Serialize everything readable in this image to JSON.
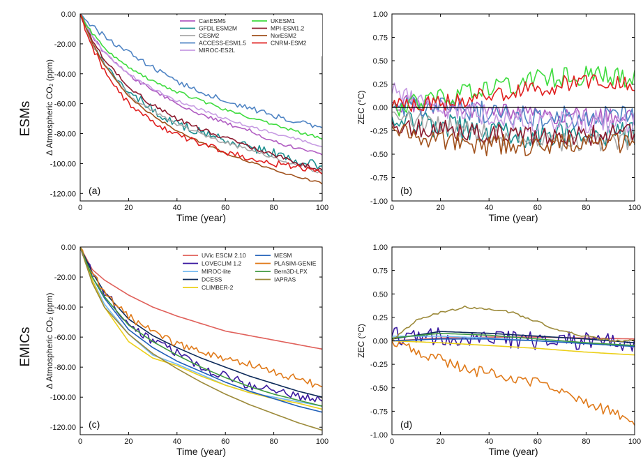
{
  "row_labels": [
    "ESMs",
    "EMICs"
  ],
  "chart_data": [
    {
      "panel": "(a)",
      "type": "line",
      "xlabel": "Time (year)",
      "ylabel": "Δ Atmospheric CO₂ (ppm)",
      "xlim": [
        0,
        100
      ],
      "ylim": [
        -125,
        0
      ],
      "xticks": [
        0,
        20,
        40,
        60,
        80,
        100
      ],
      "yticks": [
        -120,
        -100,
        -80,
        -60,
        -40,
        -20,
        0
      ],
      "legend_location": "upper right",
      "series": [
        {
          "name": "CanESM5",
          "color": "#b05cc2",
          "noise": 1.0,
          "x": [
            0,
            5,
            10,
            20,
            30,
            40,
            50,
            60,
            70,
            80,
            90,
            100
          ],
          "y": [
            0,
            -15,
            -26,
            -41,
            -51,
            -60,
            -67,
            -73,
            -78,
            -85,
            -90,
            -94
          ]
        },
        {
          "name": "GFDL ESM2M",
          "color": "#1d8f8f",
          "noise": 2.5,
          "x": [
            0,
            5,
            10,
            20,
            30,
            40,
            50,
            60,
            70,
            80,
            90,
            100
          ],
          "y": [
            0,
            -18,
            -32,
            -52,
            -64,
            -73,
            -79,
            -84,
            -89,
            -93,
            -98,
            -102
          ]
        },
        {
          "name": "CESM2",
          "color": "#a8a8a8",
          "noise": 1.0,
          "x": [
            0,
            5,
            10,
            20,
            30,
            40,
            50,
            60,
            70,
            80,
            90,
            100
          ],
          "y": [
            0,
            -20,
            -34,
            -54,
            -65,
            -74,
            -80,
            -86,
            -91,
            -96,
            -101,
            -106
          ]
        },
        {
          "name": "ACCESS-ESM1.5",
          "color": "#4f84c4",
          "noise": 1.5,
          "x": [
            0,
            5,
            10,
            20,
            30,
            40,
            50,
            60,
            70,
            80,
            90,
            100
          ],
          "y": [
            0,
            -8,
            -15,
            -26,
            -36,
            -45,
            -52,
            -58,
            -63,
            -68,
            -72,
            -76
          ]
        },
        {
          "name": "MIROC-ES2L",
          "color": "#c79ce3",
          "noise": 0.8,
          "x": [
            0,
            5,
            10,
            20,
            30,
            40,
            50,
            60,
            70,
            80,
            90,
            100
          ],
          "y": [
            0,
            -15,
            -26,
            -40,
            -50,
            -58,
            -64,
            -70,
            -75,
            -80,
            -84,
            -88
          ]
        },
        {
          "name": "UKESM1",
          "color": "#3fdc3f",
          "noise": 0.8,
          "x": [
            0,
            5,
            10,
            20,
            30,
            40,
            50,
            60,
            70,
            80,
            90,
            100
          ],
          "y": [
            0,
            -13,
            -23,
            -36,
            -45,
            -52,
            -58,
            -64,
            -69,
            -74,
            -79,
            -83
          ]
        },
        {
          "name": "MPI-ESM1.2",
          "color": "#8c1a2e",
          "noise": 1.2,
          "x": [
            0,
            5,
            10,
            20,
            30,
            40,
            50,
            60,
            70,
            80,
            90,
            100
          ],
          "y": [
            0,
            -17,
            -30,
            -49,
            -61,
            -70,
            -77,
            -83,
            -89,
            -94,
            -100,
            -104
          ]
        },
        {
          "name": "NorESM2",
          "color": "#a0511c",
          "noise": 0.6,
          "x": [
            0,
            5,
            10,
            20,
            30,
            40,
            50,
            60,
            70,
            80,
            90,
            100
          ],
          "y": [
            0,
            -19,
            -34,
            -55,
            -68,
            -78,
            -86,
            -93,
            -99,
            -104,
            -109,
            -113
          ]
        },
        {
          "name": "CNRM-ESM2",
          "color": "#e02020",
          "noise": 1.8,
          "x": [
            0,
            5,
            10,
            20,
            30,
            40,
            50,
            60,
            70,
            80,
            90,
            100
          ],
          "y": [
            0,
            -22,
            -38,
            -60,
            -73,
            -81,
            -87,
            -92,
            -97,
            -100,
            -102,
            -105
          ]
        }
      ]
    },
    {
      "panel": "(b)",
      "type": "line",
      "xlabel": "Time (year)",
      "ylabel": "ZEC (°C)",
      "xlim": [
        0,
        100
      ],
      "ylim": [
        -1.0,
        1.0
      ],
      "xticks": [
        0,
        20,
        40,
        60,
        80,
        100
      ],
      "yticks": [
        -1.0,
        -0.75,
        -0.5,
        -0.25,
        0.0,
        0.25,
        0.5,
        0.75,
        1.0
      ],
      "zero_line": true,
      "series": [
        {
          "name": "CanESM5",
          "color": "#b05cc2",
          "noise": 0.08,
          "x": [
            0,
            20,
            40,
            60,
            80,
            100
          ],
          "y": [
            0.05,
            0.0,
            -0.05,
            -0.08,
            -0.1,
            -0.1
          ]
        },
        {
          "name": "GFDL ESM2M",
          "color": "#1d8f8f",
          "noise": 0.12,
          "x": [
            0,
            20,
            40,
            60,
            80,
            100
          ],
          "y": [
            -0.1,
            -0.2,
            -0.28,
            -0.3,
            -0.3,
            -0.3
          ]
        },
        {
          "name": "CESM2",
          "color": "#a8a8a8",
          "noise": 0.1,
          "x": [
            0,
            20,
            40,
            60,
            80,
            100
          ],
          "y": [
            -0.05,
            -0.2,
            -0.3,
            -0.35,
            -0.35,
            -0.35
          ]
        },
        {
          "name": "ACCESS-ESM1.5",
          "color": "#4f84c4",
          "noise": 0.1,
          "x": [
            0,
            20,
            40,
            60,
            80,
            100
          ],
          "y": [
            0.0,
            0.0,
            -0.05,
            -0.1,
            -0.1,
            -0.1
          ]
        },
        {
          "name": "MIROC-ES2L",
          "color": "#c79ce3",
          "noise": 0.1,
          "x": [
            0,
            20,
            40,
            60,
            80,
            100
          ],
          "y": [
            0.15,
            0.0,
            -0.1,
            -0.15,
            -0.15,
            -0.15
          ]
        },
        {
          "name": "UKESM1",
          "color": "#3fdc3f",
          "noise": 0.09,
          "x": [
            0,
            20,
            40,
            60,
            80,
            100
          ],
          "y": [
            0.0,
            0.1,
            0.2,
            0.3,
            0.35,
            0.3
          ]
        },
        {
          "name": "MPI-ESM1.2",
          "color": "#8c1a2e",
          "noise": 0.1,
          "x": [
            0,
            20,
            40,
            60,
            80,
            100
          ],
          "y": [
            -0.15,
            -0.25,
            -0.3,
            -0.3,
            -0.3,
            -0.3
          ]
        },
        {
          "name": "NorESM2",
          "color": "#a0511c",
          "noise": 0.1,
          "x": [
            0,
            20,
            40,
            60,
            80,
            100
          ],
          "y": [
            -0.2,
            -0.35,
            -0.4,
            -0.4,
            -0.4,
            -0.35
          ]
        },
        {
          "name": "CNRM-ESM2",
          "color": "#e02020",
          "noise": 0.08,
          "x": [
            0,
            20,
            40,
            60,
            80,
            100
          ],
          "y": [
            0.0,
            0.05,
            0.15,
            0.2,
            0.28,
            0.25
          ]
        }
      ]
    },
    {
      "panel": "(c)",
      "type": "line",
      "xlabel": "Time (year)",
      "ylabel": "Δ Atmospheric CO₂ (ppm)",
      "xlim": [
        0,
        100
      ],
      "ylim": [
        -125,
        0
      ],
      "xticks": [
        0,
        20,
        40,
        60,
        80,
        100
      ],
      "yticks": [
        -120,
        -100,
        -80,
        -60,
        -40,
        -20,
        0
      ],
      "legend_location": "upper right",
      "series": [
        {
          "name": "UVic ESCM 2.10",
          "color": "#e0605a",
          "noise": 0,
          "x": [
            0,
            5,
            10,
            20,
            30,
            40,
            50,
            60,
            70,
            80,
            90,
            100
          ],
          "y": [
            0,
            -15,
            -22,
            -32,
            -40,
            -46,
            -51,
            -56,
            -59,
            -62,
            -65,
            -68
          ]
        },
        {
          "name": "LOVECLIM 1.2",
          "color": "#3b1aa0",
          "noise": 2.5,
          "x": [
            0,
            5,
            10,
            20,
            30,
            40,
            50,
            60,
            70,
            80,
            90,
            100
          ],
          "y": [
            0,
            -18,
            -30,
            -50,
            -63,
            -70,
            -80,
            -86,
            -92,
            -96,
            -99,
            -101
          ]
        },
        {
          "name": "MIROC-lite",
          "color": "#72b8f0",
          "noise": 0,
          "x": [
            0,
            5,
            10,
            20,
            30,
            40,
            50,
            60,
            70,
            80,
            90,
            100
          ],
          "y": [
            0,
            -22,
            -38,
            -58,
            -72,
            -78,
            -85,
            -92,
            -97,
            -100,
            -103,
            -106
          ]
        },
        {
          "name": "DCESS",
          "color": "#0d2a5a",
          "noise": 0,
          "x": [
            0,
            5,
            10,
            20,
            30,
            40,
            50,
            60,
            70,
            80,
            90,
            100
          ],
          "y": [
            0,
            -17,
            -30,
            -48,
            -59,
            -67,
            -74,
            -80,
            -86,
            -91,
            -96,
            -100
          ]
        },
        {
          "name": "CLIMBER-2",
          "color": "#ecd01a",
          "noise": 0,
          "x": [
            0,
            5,
            10,
            20,
            30,
            40,
            50,
            60,
            70,
            80,
            90,
            100
          ],
          "y": [
            0,
            -22,
            -40,
            -63,
            -74,
            -79,
            -86,
            -92,
            -97,
            -101,
            -104,
            -108
          ]
        },
        {
          "name": "MESM",
          "color": "#1f5fb8",
          "noise": 0,
          "x": [
            0,
            5,
            10,
            20,
            30,
            40,
            50,
            60,
            70,
            80,
            90,
            100
          ],
          "y": [
            0,
            -20,
            -34,
            -55,
            -67,
            -76,
            -83,
            -90,
            -96,
            -101,
            -106,
            -110
          ]
        },
        {
          "name": "PLASIM-GENIE",
          "color": "#e07a1a",
          "noise": 2.2,
          "x": [
            0,
            5,
            10,
            20,
            30,
            40,
            50,
            60,
            70,
            80,
            90,
            100
          ],
          "y": [
            0,
            -18,
            -30,
            -46,
            -57,
            -64,
            -70,
            -74,
            -78,
            -84,
            -88,
            -93
          ]
        },
        {
          "name": "Bern3D-LPX",
          "color": "#3f9a3f",
          "noise": 0,
          "x": [
            0,
            5,
            10,
            20,
            30,
            40,
            50,
            60,
            70,
            80,
            90,
            100
          ],
          "y": [
            0,
            -20,
            -33,
            -52,
            -63,
            -72,
            -80,
            -87,
            -93,
            -98,
            -102,
            -106
          ]
        },
        {
          "name": "IAPRAS",
          "color": "#9c8a3a",
          "noise": 0,
          "x": [
            0,
            5,
            10,
            20,
            30,
            40,
            50,
            60,
            70,
            80,
            90,
            100
          ],
          "y": [
            0,
            -24,
            -40,
            -58,
            -71,
            -81,
            -90,
            -98,
            -105,
            -111,
            -117,
            -122
          ]
        }
      ]
    },
    {
      "panel": "(d)",
      "type": "line",
      "xlabel": "Time (year)",
      "ylabel": "ZEC (°C)",
      "xlim": [
        0,
        100
      ],
      "ylim": [
        -1.0,
        1.0
      ],
      "xticks": [
        0,
        20,
        40,
        60,
        80,
        100
      ],
      "yticks": [
        -1.0,
        -0.75,
        -0.5,
        -0.25,
        0.0,
        0.25,
        0.5,
        0.75,
        1.0
      ],
      "series": [
        {
          "name": "UVic ESCM 2.10",
          "color": "#e0605a",
          "noise": 0,
          "x": [
            0,
            20,
            40,
            60,
            80,
            100
          ],
          "y": [
            0.0,
            0.03,
            0.04,
            0.04,
            0.03,
            0.02
          ]
        },
        {
          "name": "LOVECLIM 1.2",
          "color": "#3b1aa0",
          "noise": 0.08,
          "x": [
            0,
            20,
            40,
            60,
            80,
            100
          ],
          "y": [
            0.05,
            0.05,
            0.03,
            0.0,
            0.0,
            -0.02
          ]
        },
        {
          "name": "MIROC-lite",
          "color": "#72b8f0",
          "noise": 0,
          "x": [
            0,
            20,
            40,
            60,
            80,
            100
          ],
          "y": [
            0.05,
            0.05,
            0.03,
            0.0,
            -0.02,
            -0.05
          ]
        },
        {
          "name": "DCESS",
          "color": "#0d2a5a",
          "noise": 0,
          "x": [
            0,
            20,
            40,
            60,
            80,
            100
          ],
          "y": [
            0.02,
            0.1,
            0.08,
            0.05,
            0.02,
            -0.02
          ]
        },
        {
          "name": "CLIMBER-2",
          "color": "#ecd01a",
          "noise": 0,
          "x": [
            0,
            20,
            40,
            60,
            80,
            100
          ],
          "y": [
            0.0,
            -0.02,
            -0.05,
            -0.08,
            -0.12,
            -0.15
          ]
        },
        {
          "name": "MESM",
          "color": "#1f5fb8",
          "noise": 0,
          "x": [
            0,
            20,
            40,
            60,
            80,
            100
          ],
          "y": [
            0.0,
            0.02,
            0.02,
            0.0,
            -0.03,
            -0.06
          ]
        },
        {
          "name": "PLASIM-GENIE",
          "color": "#e07a1a",
          "noise": 0.05,
          "x": [
            0,
            10,
            20,
            30,
            40,
            50,
            60,
            70,
            80,
            90,
            100
          ],
          "y": [
            0.0,
            -0.12,
            -0.2,
            -0.3,
            -0.35,
            -0.42,
            -0.45,
            -0.55,
            -0.65,
            -0.75,
            -0.88
          ]
        },
        {
          "name": "Bern3D-LPX",
          "color": "#3f9a3f",
          "noise": 0,
          "x": [
            0,
            20,
            40,
            60,
            80,
            100
          ],
          "y": [
            0.03,
            0.08,
            0.06,
            0.02,
            -0.02,
            -0.05
          ]
        },
        {
          "name": "IAPRAS",
          "color": "#9c8a3a",
          "noise": 0.01,
          "x": [
            0,
            10,
            20,
            30,
            40,
            50,
            60,
            70,
            80,
            90,
            100
          ],
          "y": [
            0.0,
            0.22,
            0.3,
            0.36,
            0.34,
            0.3,
            0.2,
            0.1,
            0.05,
            0.0,
            0.0
          ]
        }
      ]
    }
  ]
}
